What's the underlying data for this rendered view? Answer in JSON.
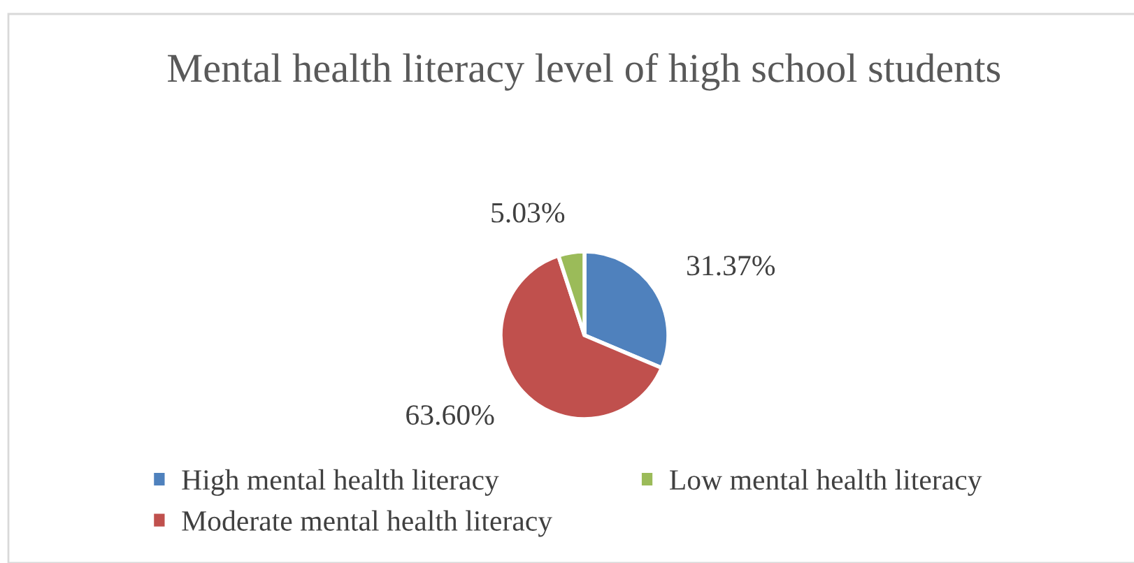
{
  "chart_data": {
    "type": "pie",
    "title": "Mental health literacy level of high school students",
    "categories": [
      "High mental health literacy",
      "Moderate mental health literacy",
      "Low mental health literacy"
    ],
    "values": [
      31.37,
      63.6,
      5.03
    ],
    "value_labels": [
      "31.37%",
      "63.60%",
      "5.03%"
    ],
    "colors": [
      "#4f81bd",
      "#c0504d",
      "#9bbb59"
    ],
    "legend": "bottom"
  }
}
